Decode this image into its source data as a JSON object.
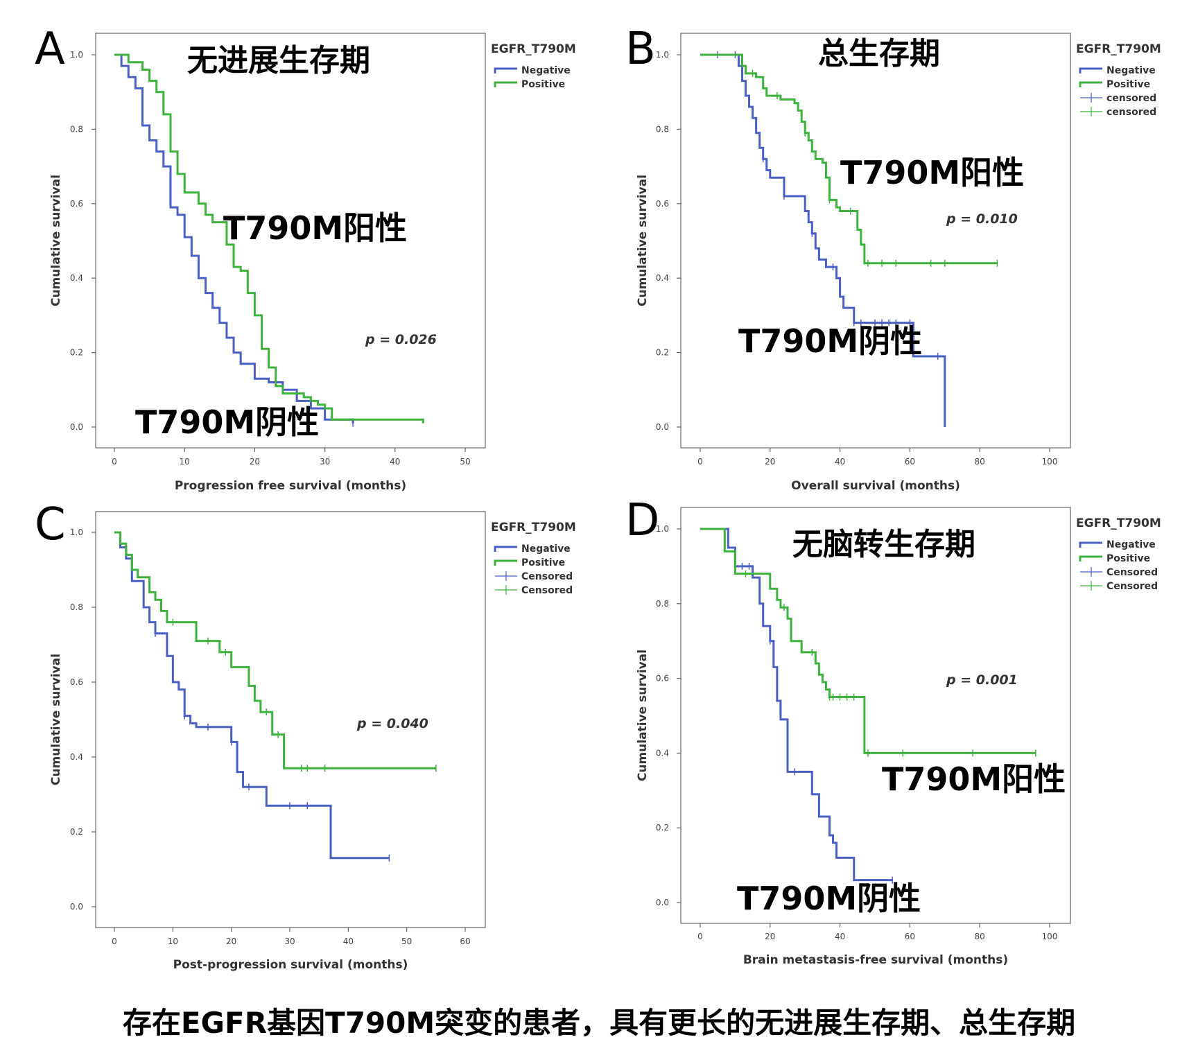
{
  "colors": {
    "negative": "#4a5fc4",
    "positive": "#3db23d"
  },
  "caption": "存在EGFR基因T790M突变的患者，具有更长的无进展生存期、总生存期",
  "chart_data": [
    {
      "type": "line",
      "panel": "A",
      "title": "无进展生存期",
      "xlabel": "Progression free survival (months)",
      "ylabel": "Cumulative survival",
      "xlim": [
        0,
        50
      ],
      "ylim": [
        0,
        1
      ],
      "xticks": [
        "0",
        "10",
        "20",
        "30",
        "40",
        "50"
      ],
      "yticks": [
        "0.0",
        "0.2",
        "0.4",
        "0.6",
        "0.8",
        "1.0"
      ],
      "p_value": "p = 0.026",
      "legend": {
        "title": "EGFR_T790M",
        "entries": [
          "Negative",
          "Positive"
        ],
        "position": "right"
      },
      "annotations": [
        {
          "text": "T790M阳性",
          "x": 15.5,
          "y": 0.53
        },
        {
          "text": "T790M阴性",
          "x": 3,
          "y": 0.0
        }
      ],
      "series": [
        {
          "name": "Negative",
          "x": [
            0,
            1,
            2,
            3,
            4,
            5,
            6,
            7,
            8,
            9,
            10,
            11,
            12,
            13,
            14,
            15,
            16,
            17,
            18,
            20,
            22,
            24,
            26,
            28,
            30,
            34
          ],
          "y": [
            1.0,
            0.97,
            0.94,
            0.91,
            0.81,
            0.77,
            0.74,
            0.7,
            0.59,
            0.57,
            0.51,
            0.46,
            0.4,
            0.36,
            0.32,
            0.28,
            0.24,
            0.2,
            0.17,
            0.13,
            0.12,
            0.1,
            0.07,
            0.05,
            0.02,
            0.01
          ],
          "censored_x": [
            34
          ]
        },
        {
          "name": "Positive",
          "x": [
            0,
            2,
            4,
            5,
            6,
            7,
            8,
            9,
            10,
            12,
            13,
            14,
            16,
            17,
            18,
            19,
            20,
            21,
            22,
            23,
            24,
            27,
            28,
            29,
            30,
            31,
            44
          ],
          "y": [
            1.0,
            0.98,
            0.96,
            0.93,
            0.9,
            0.84,
            0.74,
            0.68,
            0.63,
            0.6,
            0.57,
            0.55,
            0.49,
            0.43,
            0.42,
            0.36,
            0.3,
            0.21,
            0.16,
            0.11,
            0.09,
            0.08,
            0.07,
            0.06,
            0.05,
            0.02,
            0.01
          ],
          "censored_x": []
        }
      ]
    },
    {
      "type": "line",
      "panel": "B",
      "title": "总生存期",
      "xlabel": "Overall survival (months)",
      "ylabel": "Cumulative survival",
      "xlim": [
        0,
        100
      ],
      "ylim": [
        0,
        1
      ],
      "xticks": [
        "0",
        "20",
        "40",
        "60",
        "80",
        "100"
      ],
      "yticks": [
        "0.0",
        "0.2",
        "0.4",
        "0.6",
        "0.8",
        "1.0"
      ],
      "p_value": "p = 0.010",
      "legend": {
        "title": "EGFR_T790M",
        "entries": [
          "Negative",
          "Positive",
          "censored",
          "censored"
        ],
        "position": "right"
      },
      "annotations": [
        {
          "text": "T790M阳性",
          "x": 40,
          "y": 0.65
        },
        {
          "text": "T790M阴性",
          "x": 11,
          "y": 0.18
        }
      ],
      "series": [
        {
          "name": "Negative",
          "x": [
            0,
            11,
            12,
            13,
            14,
            15,
            16,
            17,
            18,
            19,
            20,
            22,
            24,
            26,
            30,
            31,
            32,
            33,
            34,
            36,
            39,
            40,
            41,
            44,
            55,
            61,
            70
          ],
          "y": [
            1.0,
            0.97,
            0.93,
            0.89,
            0.86,
            0.83,
            0.79,
            0.75,
            0.72,
            0.69,
            0.67,
            0.67,
            0.62,
            0.62,
            0.58,
            0.55,
            0.52,
            0.48,
            0.45,
            0.43,
            0.4,
            0.35,
            0.32,
            0.28,
            0.28,
            0.19,
            0.0
          ],
          "censored_x": [
            5,
            10,
            18,
            24,
            32,
            38,
            44,
            46,
            50,
            52,
            54,
            56,
            60,
            68
          ]
        },
        {
          "name": "Positive",
          "x": [
            0,
            12,
            13,
            14,
            16,
            18,
            19,
            20,
            23,
            26,
            27,
            28,
            29,
            30,
            31,
            32,
            33,
            35,
            36,
            37,
            39,
            40,
            45,
            46,
            47,
            85
          ],
          "y": [
            1.0,
            0.97,
            0.95,
            0.95,
            0.94,
            0.91,
            0.89,
            0.89,
            0.88,
            0.88,
            0.87,
            0.85,
            0.82,
            0.79,
            0.77,
            0.74,
            0.72,
            0.71,
            0.67,
            0.61,
            0.59,
            0.58,
            0.53,
            0.49,
            0.44,
            0.44
          ],
          "censored_x": [
            15,
            22,
            30,
            37,
            43,
            48,
            52,
            56,
            66,
            70,
            85
          ]
        }
      ]
    },
    {
      "type": "line",
      "panel": "C",
      "xlabel": "Post-progression survival (months)",
      "ylabel": "Cumulative survival",
      "xlim": [
        0,
        60
      ],
      "ylim": [
        0,
        1
      ],
      "xticks": [
        "0",
        "10",
        "20",
        "30",
        "40",
        "50",
        "60"
      ],
      "yticks": [
        "0.0",
        "0.2",
        "0.4",
        "0.6",
        "0.8",
        "1.0"
      ],
      "p_value": "p = 0.040",
      "legend": {
        "title": "EGFR_T790M",
        "entries": [
          "Negative",
          "Positive",
          "Censored",
          "Censored"
        ],
        "position": "right"
      },
      "annotations": [],
      "series": [
        {
          "name": "Negative",
          "x": [
            0,
            1,
            2,
            3,
            5,
            6,
            7,
            9,
            10,
            11,
            12,
            13,
            14,
            19,
            20,
            21,
            22,
            23,
            26,
            37,
            47
          ],
          "y": [
            1.0,
            0.96,
            0.93,
            0.87,
            0.8,
            0.76,
            0.73,
            0.67,
            0.6,
            0.58,
            0.51,
            0.49,
            0.48,
            0.48,
            0.44,
            0.36,
            0.32,
            0.32,
            0.27,
            0.13,
            0.13
          ],
          "censored_x": [
            7,
            12,
            16,
            20,
            23,
            30,
            33,
            47
          ]
        },
        {
          "name": "Positive",
          "x": [
            0,
            1,
            2,
            3,
            4,
            6,
            7,
            8,
            9,
            11,
            14,
            18,
            19,
            20,
            23,
            24,
            25,
            27,
            29,
            55
          ],
          "y": [
            1.0,
            0.97,
            0.94,
            0.9,
            0.88,
            0.84,
            0.82,
            0.79,
            0.76,
            0.76,
            0.71,
            0.68,
            0.68,
            0.64,
            0.59,
            0.55,
            0.52,
            0.46,
            0.37,
            0.37
          ],
          "censored_x": [
            10,
            16,
            19,
            26,
            28,
            32,
            33,
            36,
            55
          ]
        }
      ]
    },
    {
      "type": "line",
      "panel": "D",
      "title": "无脑转生存期",
      "xlabel": "Brain metastasis-free survival (months)",
      "ylabel": "Cumulative survival",
      "xlim": [
        0,
        100
      ],
      "ylim": [
        0,
        1
      ],
      "xticks": [
        "0",
        "20",
        "40",
        "60",
        "80",
        "100"
      ],
      "yticks": [
        "0.0",
        "0.2",
        "0.4",
        "0.6",
        "0.8",
        "1.0"
      ],
      "p_value": "p = 0.001",
      "legend": {
        "title": "EGFR_T790M",
        "entries": [
          "Negative",
          "Positive",
          "Censored",
          "Censored"
        ],
        "position": "right"
      },
      "annotations": [
        {
          "text": "T790M阳性",
          "x": 51,
          "y": 0.33
        },
        {
          "text": "T790M阴性",
          "x": 10,
          "y": 0.0
        }
      ],
      "series": [
        {
          "name": "Negative",
          "x": [
            0,
            8,
            10,
            12,
            15,
            17,
            18,
            20,
            21,
            22,
            23,
            25,
            30,
            32,
            34,
            37,
            38,
            39,
            44,
            55
          ],
          "y": [
            1.0,
            0.95,
            0.9,
            0.9,
            0.87,
            0.8,
            0.74,
            0.7,
            0.63,
            0.54,
            0.49,
            0.35,
            0.35,
            0.29,
            0.23,
            0.18,
            0.16,
            0.12,
            0.06,
            0.06
          ],
          "censored_x": [
            12,
            14,
            20,
            27,
            55
          ]
        },
        {
          "name": "Positive",
          "x": [
            0,
            7,
            10,
            15,
            20,
            22,
            23,
            25,
            26,
            29,
            32,
            33,
            34,
            35,
            36,
            37,
            40,
            45,
            47,
            96
          ],
          "y": [
            1.0,
            0.94,
            0.88,
            0.88,
            0.84,
            0.81,
            0.79,
            0.76,
            0.7,
            0.67,
            0.67,
            0.64,
            0.61,
            0.59,
            0.57,
            0.55,
            0.55,
            0.55,
            0.4,
            0.4
          ],
          "censored_x": [
            13,
            24,
            32,
            37,
            38,
            40,
            42,
            44,
            48,
            58,
            78,
            96
          ]
        }
      ]
    }
  ]
}
